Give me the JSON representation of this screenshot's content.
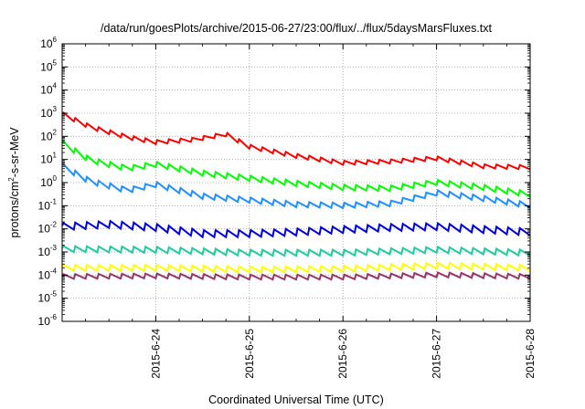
{
  "chart_data": {
    "type": "line",
    "title": "/data/run/goesPlots/archive/2015-06-27/23:00/flux/../flux/5daysMarsFluxes.txt",
    "xlabel": "Coordinated Universal Time (UTC)",
    "ylabel": "protons/cm²-s-sr-MeV",
    "ylabel_parts": {
      "base": "protons/cm",
      "sup": "2",
      "rest": "-s-sr-MeV"
    },
    "y_scale": "log",
    "ylim": [
      1e-06,
      1000000.0
    ],
    "xlim": [
      "2015-06-23 00:00",
      "2015-06-28 00:00"
    ],
    "x_ticks": [
      "2015-6-24",
      "2015-6-25",
      "2015-6-26",
      "2015-6-27",
      "2015-6-28"
    ],
    "y_ticks": [
      {
        "base": "10",
        "exp": "-6"
      },
      {
        "base": "10",
        "exp": "-5"
      },
      {
        "base": "10",
        "exp": "-4"
      },
      {
        "base": "10",
        "exp": "-3"
      },
      {
        "base": "10",
        "exp": "-2"
      },
      {
        "base": "10",
        "exp": "-1"
      },
      {
        "base": "10",
        "exp": "0"
      },
      {
        "base": "10",
        "exp": "1"
      },
      {
        "base": "10",
        "exp": "2"
      },
      {
        "base": "10",
        "exp": "3"
      },
      {
        "base": "10",
        "exp": "4"
      },
      {
        "base": "10",
        "exp": "5"
      },
      {
        "base": "10",
        "exp": "6"
      }
    ],
    "grid": true,
    "x_unit": "days",
    "series": [
      {
        "color": "#ff0000",
        "sawtooth": 1.5,
        "x": [
          0,
          0.3,
          0.7,
          1.0,
          1.4,
          1.75,
          2.0,
          2.5,
          3.0,
          3.5,
          4.0,
          4.5,
          5.0
        ],
        "y": [
          900,
          250,
          90,
          55,
          70,
          120,
          35,
          14,
          7,
          8,
          11,
          5,
          4.5
        ]
      },
      {
        "color": "#00ff00",
        "sawtooth": 1.7,
        "x": [
          0,
          0.3,
          0.7,
          1.0,
          1.5,
          2.0,
          2.5,
          3.0,
          3.5,
          4.0,
          4.5,
          5.0
        ],
        "y": [
          50,
          9,
          4,
          6,
          2.5,
          1.5,
          0.9,
          0.6,
          0.55,
          1.0,
          0.6,
          0.3
        ]
      },
      {
        "color": "#1e90ff",
        "sawtooth": 1.7,
        "x": [
          0,
          0.3,
          0.7,
          1.0,
          1.5,
          2.0,
          2.5,
          3.0,
          3.5,
          4.0,
          4.5,
          5.0
        ],
        "y": [
          5,
          1.1,
          0.45,
          0.8,
          0.25,
          0.17,
          0.11,
          0.1,
          0.12,
          0.35,
          0.2,
          0.1
        ]
      },
      {
        "color": "#0000dd",
        "sawtooth": 2.0,
        "x": [
          0,
          0.5,
          1.0,
          1.5,
          2.0,
          2.5,
          3.0,
          3.5,
          4.0,
          4.5,
          5.0
        ],
        "y": [
          0.012,
          0.015,
          0.011,
          0.006,
          0.006,
          0.007,
          0.009,
          0.011,
          0.012,
          0.009,
          0.007
        ]
      },
      {
        "color": "#1fcc9f",
        "sawtooth": 1.8,
        "x": [
          0,
          1.0,
          2.0,
          3.0,
          4.0,
          5.0
        ],
        "y": [
          0.0013,
          0.0012,
          0.0009,
          0.0009,
          0.0012,
          0.0009
        ]
      },
      {
        "color": "#ffff00",
        "sawtooth": 1.8,
        "x": [
          0,
          1.0,
          2.0,
          3.0,
          4.0,
          5.0
        ],
        "y": [
          0.0002,
          0.0002,
          0.00017,
          0.00018,
          0.00025,
          0.0002
        ]
      },
      {
        "color": "#993366",
        "sawtooth": 1.6,
        "x": [
          0,
          1.0,
          2.0,
          3.0,
          4.0,
          5.0
        ],
        "y": [
          8.5e-05,
          9e-05,
          8e-05,
          8e-05,
          0.0001,
          8.5e-05
        ]
      }
    ]
  }
}
